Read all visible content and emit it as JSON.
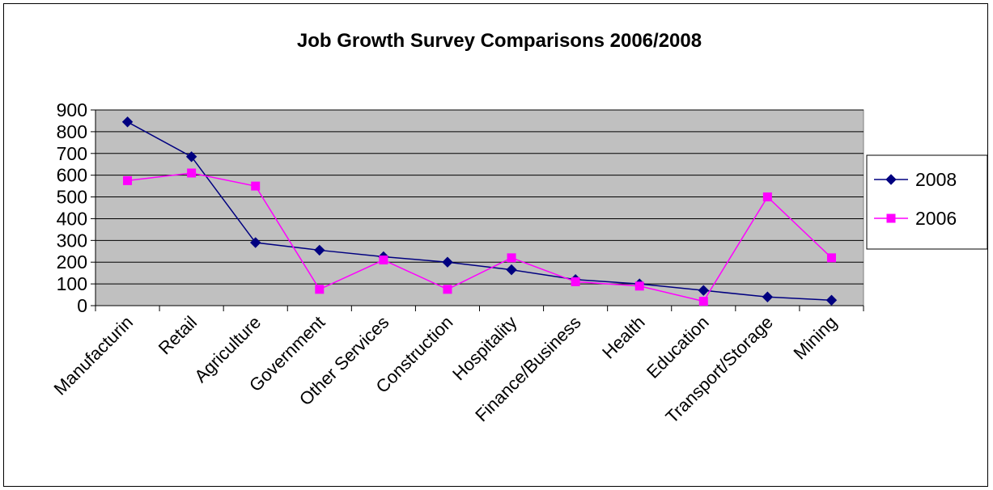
{
  "chart_data": {
    "type": "line",
    "title": "Job Growth Survey Comparisons 2006/2008",
    "xlabel": "",
    "ylabel": "",
    "ylim": [
      0,
      900
    ],
    "yticks": [
      0,
      100,
      200,
      300,
      400,
      500,
      600,
      700,
      800,
      900
    ],
    "categories": [
      "Manufacturin",
      "Retail",
      "Agriculture",
      "Government",
      "Other Services",
      "Construction",
      "Hospitality",
      "Finance/Business",
      "Health",
      "Education",
      "Transport/Storage",
      "Mining"
    ],
    "series": [
      {
        "name": "2008",
        "color": "#000080",
        "marker": "diamond",
        "values": [
          845,
          685,
          290,
          255,
          225,
          200,
          165,
          120,
          100,
          70,
          40,
          25
        ]
      },
      {
        "name": "2006",
        "color": "#FF00FF",
        "marker": "square",
        "values": [
          575,
          610,
          550,
          75,
          210,
          75,
          220,
          110,
          90,
          20,
          500,
          220
        ]
      }
    ],
    "grid": true,
    "plot_background": "#C0C0C0",
    "legend_position": "right"
  }
}
